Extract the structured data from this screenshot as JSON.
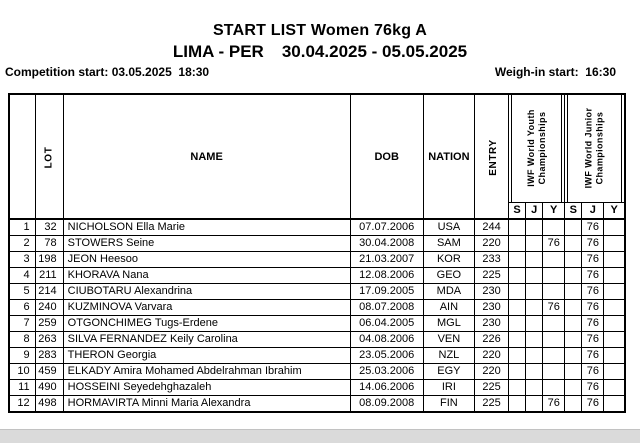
{
  "title": "START LIST Women 76kg A",
  "subtitle": {
    "venue": "LIMA - PER",
    "dates": "30.04.2025 - 05.05.2025"
  },
  "info": {
    "competition_start_label": "Competition start:",
    "competition_start_value": "03.05.2025  18:30",
    "weigh_in_label": "Weigh-in start:",
    "weigh_in_value": "16:30"
  },
  "colors": {
    "text": "#000000",
    "border": "#000000",
    "page_bg": "#ffffff",
    "footer_strip": "#dadada"
  },
  "table": {
    "headers": {
      "rank": "",
      "lot": "LOT",
      "name": "NAME",
      "dob": "DOB",
      "nation": "NATION",
      "entry": "ENTRY",
      "youth_group_line1": "IWF World Youth",
      "youth_group_line2": "Championships",
      "junior_group_line1": "IWF World Junior",
      "junior_group_line2": "Championships"
    },
    "sub_headers": [
      "S",
      "J",
      "Y",
      "S",
      "J",
      "Y"
    ],
    "rows": [
      {
        "rank": "1",
        "lot": "32",
        "name": "NICHOLSON Ella Marie",
        "dob": "07.07.2006",
        "nation": "USA",
        "entry": "244",
        "ys": "",
        "yj": "",
        "yy": "",
        "js": "",
        "jj": "76",
        "jy": ""
      },
      {
        "rank": "2",
        "lot": "78",
        "name": "STOWERS Seine",
        "dob": "30.04.2008",
        "nation": "SAM",
        "entry": "220",
        "ys": "",
        "yj": "",
        "yy": "76",
        "js": "",
        "jj": "76",
        "jy": ""
      },
      {
        "rank": "3",
        "lot": "198",
        "name": "JEON Heesoo",
        "dob": "21.03.2007",
        "nation": "KOR",
        "entry": "233",
        "ys": "",
        "yj": "",
        "yy": "",
        "js": "",
        "jj": "76",
        "jy": ""
      },
      {
        "rank": "4",
        "lot": "211",
        "name": "KHORAVA Nana",
        "dob": "12.08.2006",
        "nation": "GEO",
        "entry": "225",
        "ys": "",
        "yj": "",
        "yy": "",
        "js": "",
        "jj": "76",
        "jy": ""
      },
      {
        "rank": "5",
        "lot": "214",
        "name": "CIUBOTARU Alexandrina",
        "dob": "17.09.2005",
        "nation": "MDA",
        "entry": "230",
        "ys": "",
        "yj": "",
        "yy": "",
        "js": "",
        "jj": "76",
        "jy": ""
      },
      {
        "rank": "6",
        "lot": "240",
        "name": "KUZMINOVA Varvara",
        "dob": "08.07.2008",
        "nation": "AIN",
        "entry": "230",
        "ys": "",
        "yj": "",
        "yy": "76",
        "js": "",
        "jj": "76",
        "jy": ""
      },
      {
        "rank": "7",
        "lot": "259",
        "name": "OTGONCHIMEG Tugs-Erdene",
        "dob": "06.04.2005",
        "nation": "MGL",
        "entry": "230",
        "ys": "",
        "yj": "",
        "yy": "",
        "js": "",
        "jj": "76",
        "jy": ""
      },
      {
        "rank": "8",
        "lot": "263",
        "name": "SILVA FERNANDEZ Keily Carolina",
        "dob": "04.08.2006",
        "nation": "VEN",
        "entry": "226",
        "ys": "",
        "yj": "",
        "yy": "",
        "js": "",
        "jj": "76",
        "jy": ""
      },
      {
        "rank": "9",
        "lot": "283",
        "name": "THERON Georgia",
        "dob": "23.05.2006",
        "nation": "NZL",
        "entry": "220",
        "ys": "",
        "yj": "",
        "yy": "",
        "js": "",
        "jj": "76",
        "jy": ""
      },
      {
        "rank": "10",
        "lot": "459",
        "name": "ELKADY Amira Mohamed Abdelrahman Ibrahim",
        "dob": "25.03.2006",
        "nation": "EGY",
        "entry": "220",
        "ys": "",
        "yj": "",
        "yy": "",
        "js": "",
        "jj": "76",
        "jy": ""
      },
      {
        "rank": "11",
        "lot": "490",
        "name": "HOSSEINI Seyedehghazaleh",
        "dob": "14.06.2006",
        "nation": "IRI",
        "entry": "225",
        "ys": "",
        "yj": "",
        "yy": "",
        "js": "",
        "jj": "76",
        "jy": ""
      },
      {
        "rank": "12",
        "lot": "498",
        "name": "HORMAVIRTA Minni Maria Alexandra",
        "dob": "08.09.2008",
        "nation": "FIN",
        "entry": "225",
        "ys": "",
        "yj": "",
        "yy": "76",
        "js": "",
        "jj": "76",
        "jy": ""
      }
    ]
  }
}
